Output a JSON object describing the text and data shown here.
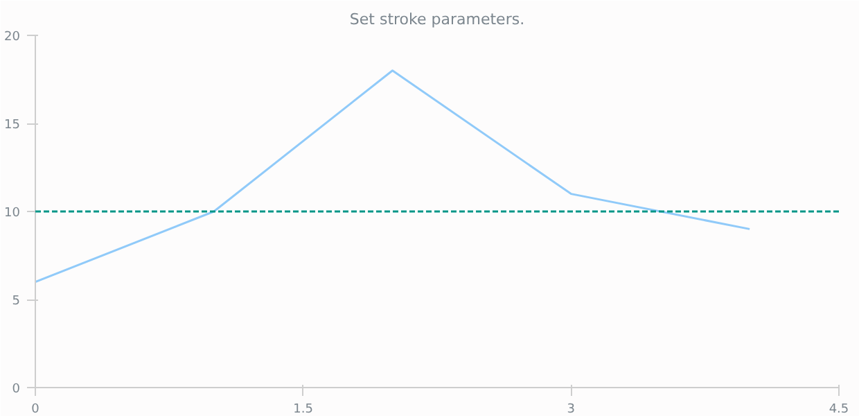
{
  "chart_data": {
    "type": "line",
    "title": "Set stroke parameters.",
    "x": [
      0,
      1,
      2,
      3,
      4
    ],
    "series": [
      {
        "color": "#90caf9",
        "values": [
          6,
          10,
          18,
          11,
          9
        ]
      }
    ],
    "xlim": [
      0,
      4.5
    ],
    "xticks": [
      0,
      1.5,
      3,
      4.5
    ],
    "ylim": [
      0,
      20
    ],
    "yticks": [
      0,
      5,
      10,
      15,
      20
    ],
    "ref_lines": [
      {
        "axis": "y",
        "value": 10,
        "color": "#009688",
        "line_style": "dashed"
      }
    ],
    "grid": false
  }
}
